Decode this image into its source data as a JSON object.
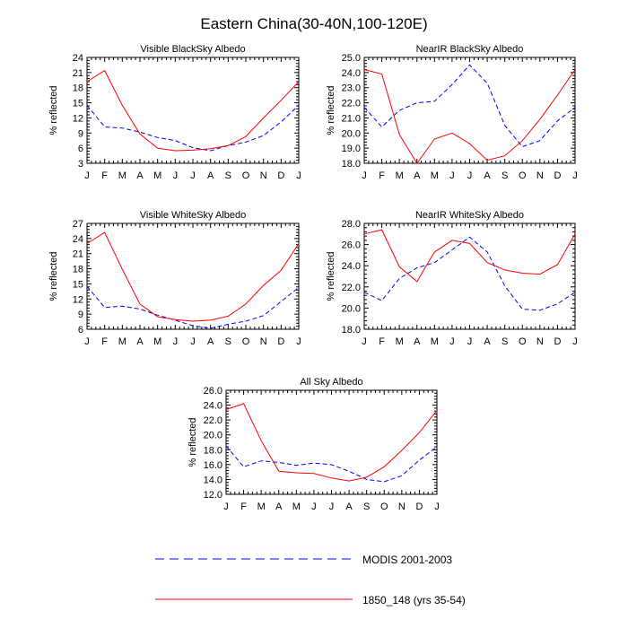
{
  "figure_title": "Eastern China(30-40N,100-120E)",
  "legend": [
    {
      "label": "MODIS 2001-2003",
      "color": "#0000ff",
      "dash": "dashed"
    },
    {
      "label": "1850_148 (yrs 35-54)",
      "color": "#ff0000",
      "dash": "solid"
    }
  ],
  "chart_data": [
    {
      "type": "line",
      "title": "Visible BlackSky Albedo",
      "ylabel": "% reflected",
      "categories": [
        "J",
        "F",
        "M",
        "A",
        "M",
        "J",
        "J",
        "A",
        "S",
        "O",
        "N",
        "D",
        "J"
      ],
      "ylim": [
        3,
        24
      ],
      "yticks": [
        3,
        6,
        9,
        12,
        15,
        18,
        21,
        24
      ],
      "ytick_labels": [
        "3",
        "6",
        "9",
        "12",
        "15",
        "18",
        "21",
        "24"
      ],
      "series": [
        {
          "name": "MODIS 2001-2003",
          "color": "#0000ff",
          "dash": "dashed",
          "values": [
            14.5,
            10.2,
            10.0,
            9.2,
            8.1,
            7.5,
            6.1,
            5.5,
            6.5,
            7.2,
            8.5,
            11.2,
            14.5
          ]
        },
        {
          "name": "1850_148 (yrs 35-54)",
          "color": "#ff0000",
          "dash": "solid",
          "values": [
            19.2,
            21.4,
            14.5,
            8.8,
            6.0,
            5.5,
            5.6,
            5.9,
            6.5,
            8.3,
            12.0,
            15.5,
            19.2
          ]
        }
      ]
    },
    {
      "type": "line",
      "title": "NearIR BlackSky Albedo",
      "ylabel": "% reflected",
      "categories": [
        "J",
        "F",
        "M",
        "A",
        "M",
        "J",
        "J",
        "A",
        "S",
        "O",
        "N",
        "D",
        "J"
      ],
      "ylim": [
        18,
        25
      ],
      "yticks": [
        18,
        19,
        20,
        21,
        22,
        23,
        24,
        25
      ],
      "ytick_labels": [
        "18.0",
        "19.0",
        "20.0",
        "21.0",
        "22.0",
        "23.0",
        "24.0",
        "25.0"
      ],
      "series": [
        {
          "name": "MODIS 2001-2003",
          "color": "#0000ff",
          "dash": "dashed",
          "values": [
            21.7,
            20.4,
            21.5,
            22.0,
            22.1,
            23.2,
            24.5,
            23.3,
            20.5,
            19.1,
            19.5,
            20.8,
            21.7
          ]
        },
        {
          "name": "1850_148 (yrs 35-54)",
          "color": "#ff0000",
          "dash": "solid",
          "values": [
            24.2,
            23.9,
            19.9,
            18.0,
            19.6,
            20.0,
            19.3,
            18.2,
            18.5,
            19.5,
            20.9,
            22.5,
            24.2
          ]
        }
      ]
    },
    {
      "type": "line",
      "title": "Visible WhiteSky Albedo",
      "ylabel": "% reflected",
      "categories": [
        "J",
        "F",
        "M",
        "A",
        "M",
        "J",
        "J",
        "A",
        "S",
        "O",
        "N",
        "D",
        "J"
      ],
      "ylim": [
        6,
        27
      ],
      "yticks": [
        6,
        9,
        12,
        15,
        18,
        21,
        24,
        27
      ],
      "ytick_labels": [
        "6",
        "9",
        "12",
        "15",
        "18",
        "21",
        "24",
        "27"
      ],
      "series": [
        {
          "name": "MODIS 2001-2003",
          "color": "#0000ff",
          "dash": "dashed",
          "values": [
            14.5,
            10.3,
            10.6,
            10.0,
            8.8,
            7.8,
            6.7,
            6.2,
            7.0,
            7.6,
            8.7,
            11.5,
            14.3
          ]
        },
        {
          "name": "1850_148 (yrs 35-54)",
          "color": "#ff0000",
          "dash": "solid",
          "values": [
            23.0,
            25.2,
            17.9,
            11.0,
            8.5,
            7.9,
            7.6,
            7.8,
            8.6,
            11.0,
            14.7,
            17.7,
            23.0
          ]
        }
      ]
    },
    {
      "type": "line",
      "title": "NearIR WhiteSky Albedo",
      "ylabel": "% reflected",
      "categories": [
        "J",
        "F",
        "M",
        "A",
        "M",
        "J",
        "J",
        "A",
        "S",
        "O",
        "N",
        "D",
        "J"
      ],
      "ylim": [
        18,
        28
      ],
      "yticks": [
        18,
        20,
        22,
        24,
        26,
        28
      ],
      "ytick_labels": [
        "18.0",
        "20.0",
        "22.0",
        "24.0",
        "26.0",
        "28.0"
      ],
      "series": [
        {
          "name": "MODIS 2001-2003",
          "color": "#0000ff",
          "dash": "dashed",
          "values": [
            21.5,
            20.7,
            22.8,
            23.8,
            24.3,
            25.5,
            26.7,
            25.3,
            22.1,
            19.9,
            19.8,
            20.4,
            21.5
          ]
        },
        {
          "name": "1850_148 (yrs 35-54)",
          "color": "#ff0000",
          "dash": "solid",
          "values": [
            27.0,
            27.4,
            23.9,
            22.5,
            25.3,
            26.4,
            26.1,
            24.3,
            23.6,
            23.3,
            23.2,
            24.1,
            27.0
          ]
        }
      ]
    },
    {
      "type": "line",
      "title": "All Sky Albedo",
      "ylabel": "% reflected",
      "categories": [
        "J",
        "F",
        "M",
        "A",
        "M",
        "J",
        "J",
        "A",
        "S",
        "O",
        "N",
        "D",
        "J"
      ],
      "ylim": [
        12,
        26
      ],
      "yticks": [
        12,
        14,
        16,
        18,
        20,
        22,
        24,
        26
      ],
      "ytick_labels": [
        "12.0",
        "14.0",
        "16.0",
        "18.0",
        "20.0",
        "22.0",
        "24.0",
        "26.0"
      ],
      "series": [
        {
          "name": "MODIS 2001-2003",
          "color": "#0000ff",
          "dash": "dashed",
          "values": [
            18.5,
            15.7,
            16.5,
            16.3,
            15.9,
            16.2,
            16.0,
            15.1,
            14.0,
            13.7,
            14.5,
            16.6,
            18.4
          ]
        },
        {
          "name": "1850_148 (yrs 35-54)",
          "color": "#ff0000",
          "dash": "solid",
          "values": [
            23.4,
            24.2,
            19.2,
            15.1,
            14.9,
            14.8,
            14.2,
            13.8,
            14.3,
            15.7,
            17.9,
            20.3,
            23.3
          ]
        }
      ]
    }
  ]
}
